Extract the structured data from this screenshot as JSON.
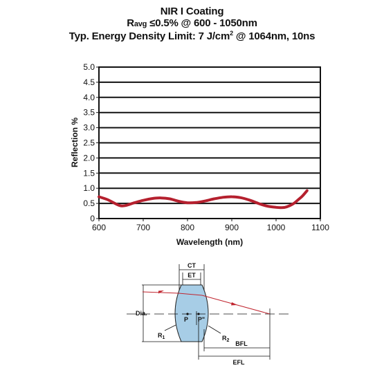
{
  "header": {
    "line1": "NIR I Coating",
    "line2_r": "R",
    "line2_sub": "avg",
    "line2_rest": " ≤0.5% @ 600 - 1050nm",
    "line3_pre": "Typ. Energy Density Limit: 7 J/cm",
    "line3_sup": "2",
    "line3_post": " @ 1064nm, 10ns"
  },
  "chart_data": {
    "type": "line",
    "title": "NIR I Coating",
    "xlabel": "Wavelength (nm)",
    "ylabel": "Reflection %",
    "xlim": [
      600,
      1100
    ],
    "ylim": [
      0,
      5.0
    ],
    "xticks": [
      "600",
      "700",
      "800",
      "900",
      "1000",
      "1100"
    ],
    "yticks": [
      "0",
      "0.5",
      "1.0",
      "1.5",
      "2.0",
      "2.5",
      "3.0",
      "3.5",
      "4.0",
      "4.5",
      "5.0"
    ],
    "grid": "horizontal",
    "series_color": "#b5202e",
    "x": [
      600,
      620,
      640,
      650,
      660,
      680,
      700,
      720,
      740,
      760,
      780,
      800,
      820,
      840,
      860,
      880,
      900,
      920,
      940,
      960,
      980,
      1000,
      1010,
      1020,
      1030,
      1040,
      1050,
      1060,
      1070
    ],
    "y": [
      0.72,
      0.62,
      0.47,
      0.42,
      0.43,
      0.52,
      0.6,
      0.66,
      0.68,
      0.65,
      0.57,
      0.52,
      0.53,
      0.58,
      0.65,
      0.7,
      0.72,
      0.69,
      0.61,
      0.5,
      0.41,
      0.37,
      0.36,
      0.37,
      0.42,
      0.5,
      0.62,
      0.75,
      0.92
    ]
  },
  "diagram": {
    "ct": "CT",
    "et": "ET",
    "dia": "Dia.",
    "p": "P",
    "p_prime": "P\"",
    "r1": "R",
    "r1_sub": "1",
    "r2": "R",
    "r2_sub": "2",
    "bfl": "BFL",
    "efl": "EFL"
  }
}
